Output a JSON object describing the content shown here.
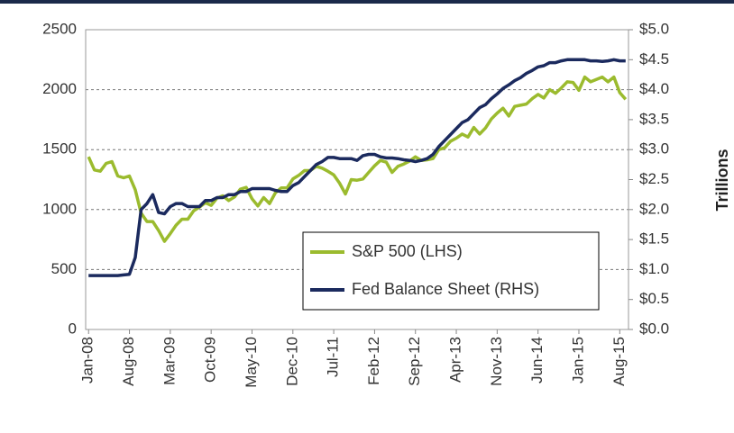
{
  "chart_data": {
    "type": "line",
    "categories": [
      "Jan-08",
      null,
      null,
      null,
      null,
      null,
      null,
      "Aug-08",
      null,
      null,
      null,
      null,
      null,
      null,
      "Mar-09",
      null,
      null,
      null,
      null,
      null,
      null,
      "Oct-09",
      null,
      null,
      null,
      null,
      null,
      null,
      "May-10",
      null,
      null,
      null,
      null,
      null,
      null,
      "Dec-10",
      null,
      null,
      null,
      null,
      null,
      null,
      "Jul-11",
      null,
      null,
      null,
      null,
      null,
      null,
      "Feb-12",
      null,
      null,
      null,
      null,
      null,
      null,
      "Sep-12",
      null,
      null,
      null,
      null,
      null,
      null,
      "Apr-13",
      null,
      null,
      null,
      null,
      null,
      null,
      "Nov-13",
      null,
      null,
      null,
      null,
      null,
      null,
      "Jun-14",
      null,
      null,
      null,
      null,
      null,
      null,
      "Jan-15",
      null,
      null,
      null,
      null,
      null,
      null,
      "Aug-15",
      null
    ],
    "series": [
      {
        "name": "S&P 500 (LHS)",
        "color": "#9bbb2e",
        "values": [
          1440,
          1330,
          1320,
          1385,
          1400,
          1280,
          1265,
          1280,
          1165,
          970,
          900,
          900,
          825,
          735,
          800,
          870,
          920,
          920,
          990,
          1020,
          1057,
          1035,
          1095,
          1115,
          1075,
          1105,
          1170,
          1185,
          1090,
          1030,
          1100,
          1050,
          1140,
          1180,
          1180,
          1255,
          1285,
          1325,
          1325,
          1360,
          1345,
          1320,
          1290,
          1220,
          1130,
          1250,
          1245,
          1255,
          1310,
          1365,
          1410,
          1395,
          1310,
          1360,
          1380,
          1405,
          1440,
          1410,
          1415,
          1425,
          1500,
          1515,
          1570,
          1595,
          1630,
          1605,
          1685,
          1630,
          1680,
          1755,
          1805,
          1845,
          1780,
          1860,
          1870,
          1880,
          1925,
          1960,
          1930,
          2000,
          1970,
          2015,
          2065,
          2060,
          1995,
          2105,
          2065,
          2085,
          2105,
          2065,
          2105,
          1975,
          1920
        ]
      },
      {
        "name": "Fed Balance Sheet (RHS)",
        "color": "#1b2a5e",
        "axis": "y2",
        "values": [
          0.9,
          0.9,
          0.9,
          0.9,
          0.9,
          0.9,
          0.91,
          0.92,
          1.2,
          2.0,
          2.1,
          2.25,
          1.95,
          1.93,
          2.05,
          2.1,
          2.1,
          2.05,
          2.05,
          2.05,
          2.15,
          2.15,
          2.2,
          2.2,
          2.25,
          2.25,
          2.3,
          2.3,
          2.35,
          2.35,
          2.35,
          2.35,
          2.32,
          2.3,
          2.3,
          2.4,
          2.45,
          2.55,
          2.65,
          2.75,
          2.8,
          2.87,
          2.87,
          2.85,
          2.85,
          2.85,
          2.82,
          2.9,
          2.92,
          2.92,
          2.88,
          2.86,
          2.86,
          2.85,
          2.83,
          2.82,
          2.8,
          2.82,
          2.85,
          2.92,
          3.05,
          3.15,
          3.25,
          3.35,
          3.45,
          3.5,
          3.6,
          3.7,
          3.75,
          3.85,
          3.93,
          4.02,
          4.08,
          4.15,
          4.2,
          4.27,
          4.32,
          4.38,
          4.4,
          4.45,
          4.45,
          4.48,
          4.5,
          4.5,
          4.5,
          4.5,
          4.48,
          4.48,
          4.47,
          4.48,
          4.5,
          4.48,
          4.48
        ]
      }
    ],
    "ylim": [
      0,
      2500
    ],
    "yticks": [
      0,
      500,
      1000,
      1500,
      2000,
      2500
    ],
    "y2lim": [
      0,
      5
    ],
    "y2ticks": [
      {
        "value": 0,
        "label": "$0.0"
      },
      {
        "value": 0.5,
        "label": "$0.5"
      },
      {
        "value": 1,
        "label": "$1.0"
      },
      {
        "value": 1.5,
        "label": "$1.5"
      },
      {
        "value": 2,
        "label": "$2.0"
      },
      {
        "value": 2.5,
        "label": "$2.5"
      },
      {
        "value": 3,
        "label": "$3.0"
      },
      {
        "value": 3.5,
        "label": "$3.5"
      },
      {
        "value": 4,
        "label": "$4.0"
      },
      {
        "value": 4.5,
        "label": "$4.5"
      },
      {
        "value": 5,
        "label": "$5.0"
      }
    ],
    "y2label": "Trillions",
    "grid": true,
    "legend": "lower right"
  }
}
